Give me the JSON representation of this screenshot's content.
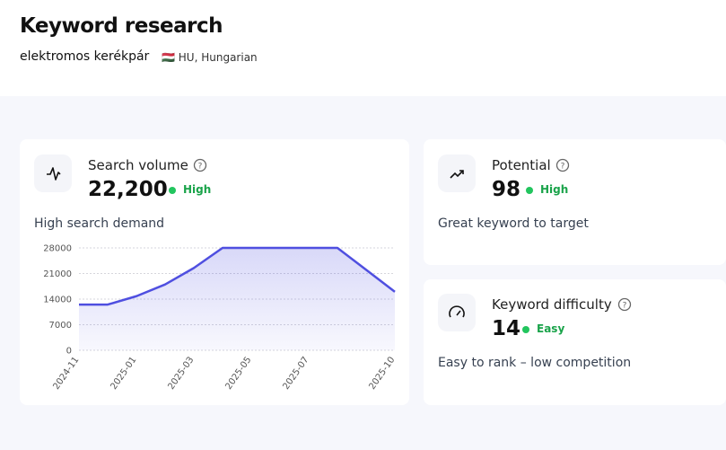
{
  "header": {
    "title": "Keyword research",
    "keyword": "elektromos kerékpár",
    "flag": "🇭🇺",
    "locale": "HU, Hungarian"
  },
  "cards": [
    {
      "title": "Search volume",
      "value": "22,200",
      "level": "High",
      "description": "High search demand"
    },
    {
      "title": "Potential",
      "value": "98",
      "level": "High",
      "description": "Great keyword to target"
    },
    {
      "title": "Keyword difficulty",
      "value": "14",
      "level": "Easy",
      "description": "Easy to rank – low competition"
    }
  ],
  "chart_data": {
    "type": "area",
    "categories": [
      "2024-11",
      null,
      "2025-01",
      null,
      "2025-03",
      null,
      "2025-05",
      null,
      "2025-07",
      null,
      null,
      "2025-10"
    ],
    "values": [
      12500,
      12500,
      14800,
      18000,
      22500,
      28000,
      28000,
      28000,
      28000,
      28000,
      22000,
      16000
    ],
    "color": "#4f4fe0",
    "ylim": [
      0,
      28000
    ],
    "yticks": [
      0,
      7000,
      14000,
      21000,
      28000
    ],
    "grid": true
  }
}
